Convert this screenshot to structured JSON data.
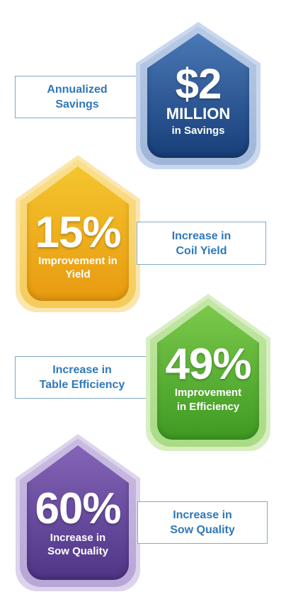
{
  "cards": [
    {
      "value": "$2",
      "unit": "MILLION",
      "caption_lines": [
        "in Savings"
      ],
      "label_lines": [
        "Annualized",
        "Savings"
      ],
      "colors": {
        "glow": "#c9d8ee",
        "outer": "#9fb6d8",
        "inner_top": "#4a78b5",
        "inner_bottom": "#173f7a"
      }
    },
    {
      "value": "15%",
      "caption_lines": [
        "Improvement in",
        "Yield"
      ],
      "label_lines": [
        "Increase in",
        "Coil Yield"
      ],
      "colors": {
        "glow": "#fbe6b0",
        "outer": "#f7d36a",
        "inner_top": "#f4c52e",
        "inner_bottom": "#e89a10"
      }
    },
    {
      "value": "49%",
      "caption_lines": [
        "Improvement",
        "in Efficiency"
      ],
      "label_lines": [
        "Increase in",
        "Table Efficiency"
      ],
      "colors": {
        "glow": "#d7efc3",
        "outer": "#a9db84",
        "inner_top": "#7bc94b",
        "inner_bottom": "#3f9a23"
      }
    },
    {
      "value": "60%",
      "caption_lines": [
        "Increase in",
        "Sow Quality"
      ],
      "label_lines": [
        "Increase in",
        "Sow Quality"
      ],
      "colors": {
        "glow": "#ddd3ec",
        "outer": "#b7a6d6",
        "inner_top": "#8464b7",
        "inner_bottom": "#4f3587"
      }
    }
  ],
  "label_color": "#2f78b9"
}
